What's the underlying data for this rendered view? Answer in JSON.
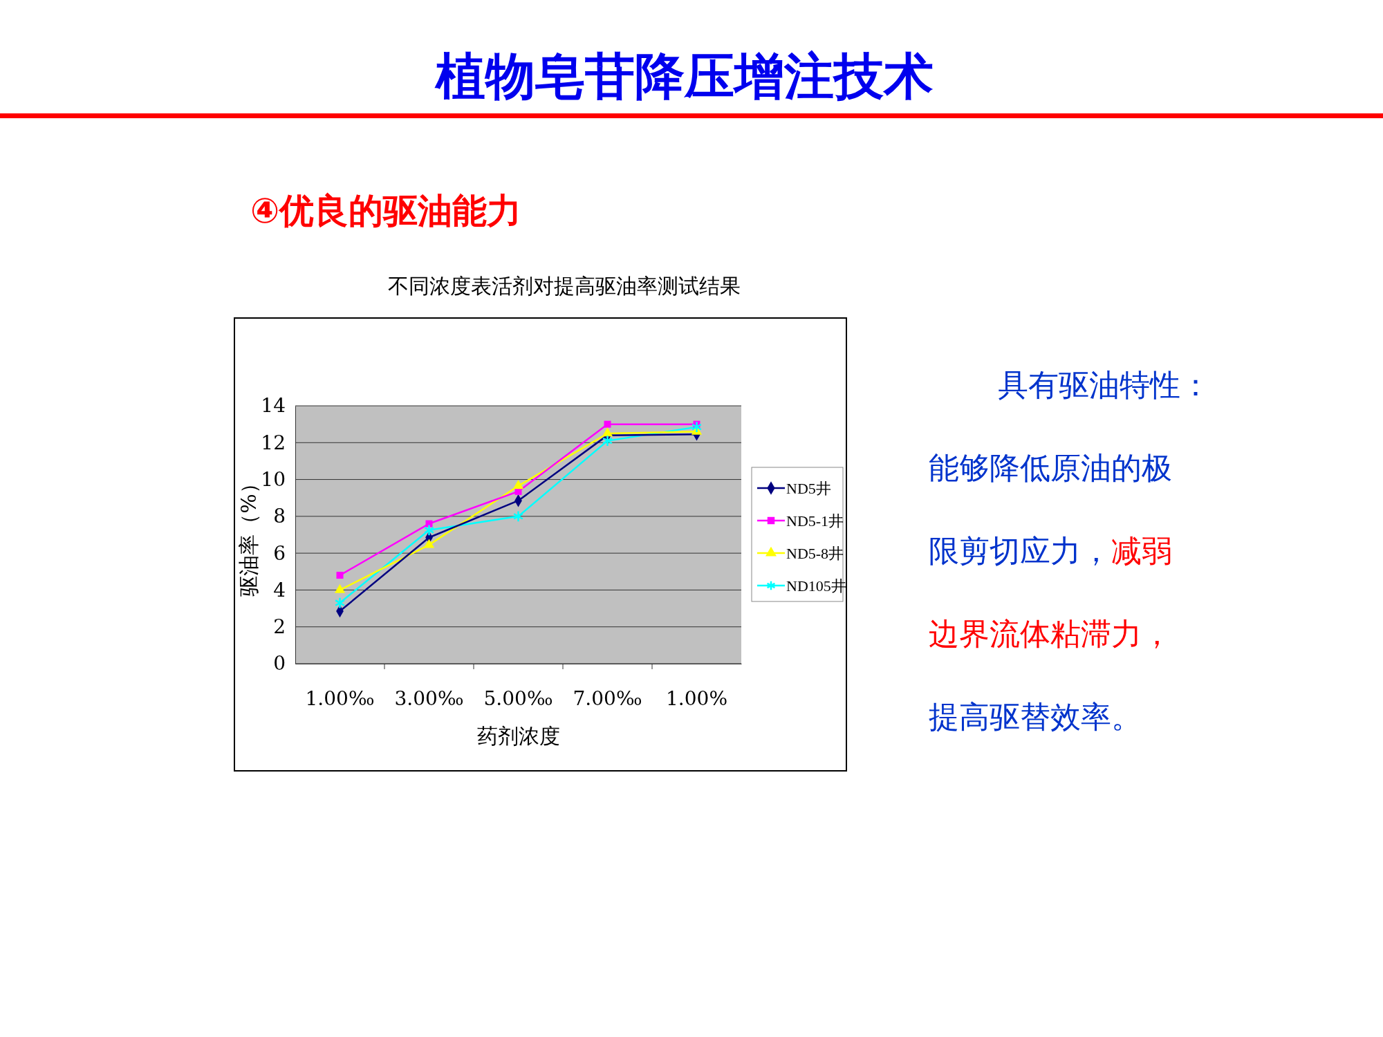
{
  "chart_data": {
    "type": "line",
    "title": "植物皂苷降压增注技术",
    "subtitle": "④优良的驱油能力",
    "annotations": [
      "不同浓度表活剂对提高驱油率测试结果",
      "具有驱油特性：",
      "能够降低原油的极",
      "限剪切应力，",
      "减弱",
      "边界流体粘滞力，",
      "提高驱替效率。"
    ],
    "xlabel": "药剂浓度",
    "ylabel": "驱油率（%）",
    "categories": [
      "1.00‰",
      "3.00‰",
      "5.00‰",
      "7.00‰",
      "1.00%"
    ],
    "series": [
      {
        "name": "ND5井",
        "color": "#000080",
        "marker": "diamond",
        "values": [
          2.85,
          6.85,
          8.85,
          12.4,
          12.45
        ]
      },
      {
        "name": "ND5-1井",
        "color": "#ff00ff",
        "marker": "square",
        "values": [
          4.8,
          7.6,
          9.35,
          13.0,
          13.0
        ]
      },
      {
        "name": "ND5-8井",
        "color": "#ffff00",
        "marker": "triangle",
        "values": [
          4.0,
          6.45,
          9.65,
          12.5,
          12.6
        ]
      },
      {
        "name": "ND105井",
        "color": "#00ffff",
        "marker": "cross",
        "values": [
          3.3,
          7.25,
          8.0,
          12.1,
          12.85
        ]
      }
    ],
    "ylim": [
      0,
      14
    ],
    "yticks": [
      0,
      2,
      4,
      6,
      8,
      10,
      12,
      14
    ],
    "grid": "y",
    "legend": "right",
    "line_style": "solid"
  }
}
